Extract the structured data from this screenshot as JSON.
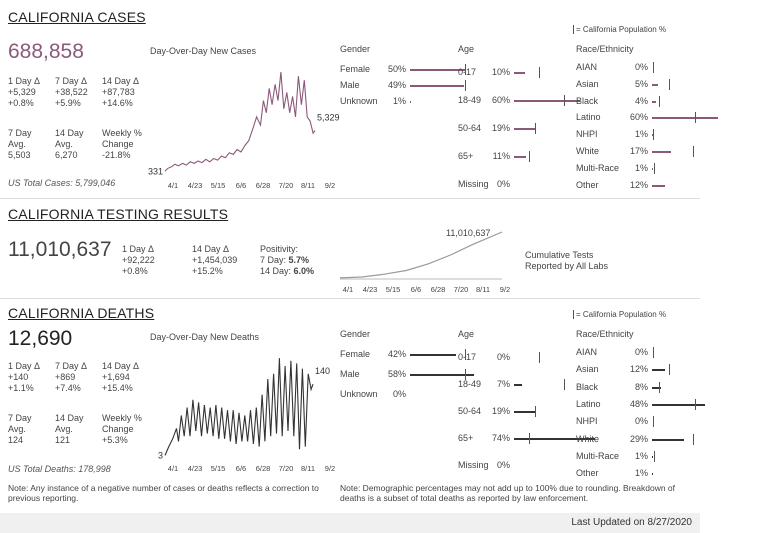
{
  "cases": {
    "title": "CALIFORNIA CASES",
    "total": "688,858",
    "chart_title": "Day-Over-Day New Cases",
    "pop_legend": "= California Population %",
    "stats": [
      {
        "label": "1 Day Δ",
        "v1": "+5,329",
        "v2": "+0.8%"
      },
      {
        "label": "7 Day Δ",
        "v1": "+38,522",
        "v2": "+5.9%"
      },
      {
        "label": "14 Day Δ",
        "v1": "+87,783",
        "v2": "+14.6%"
      }
    ],
    "avg": [
      {
        "label": "7 Day",
        "label2": "Avg.",
        "value": "5,503"
      },
      {
        "label": "14 Day",
        "label2": "Avg.",
        "value": "6,270"
      },
      {
        "label": "Weekly %",
        "label2": "Change",
        "value": "-21.8%"
      }
    ],
    "us_total": "US Total Cases: 5,799,046",
    "start_label": "331",
    "end_label": "5,329",
    "gender_title": "Gender",
    "age_title": "Age",
    "race_title": "Race/Ethnicity",
    "gender": [
      {
        "name": "Female",
        "pct": "50%",
        "value": 50,
        "pop": 50
      },
      {
        "name": "Male",
        "pct": "49%",
        "value": 49,
        "pop": 50
      },
      {
        "name": "Unknown",
        "pct": "1%",
        "value": 1,
        "pop": null
      }
    ],
    "age": [
      {
        "name": "0-17",
        "pct": "10%",
        "value": 10,
        "pop": 23
      },
      {
        "name": "18-49",
        "pct": "60%",
        "value": 60,
        "pop": 45
      },
      {
        "name": "50-64",
        "pct": "19%",
        "value": 19,
        "pop": 19
      },
      {
        "name": "65+",
        "pct": "11%",
        "value": 11,
        "pop": 14
      },
      {
        "name": "Missing",
        "pct": "0%",
        "value": 0,
        "pop": null
      }
    ],
    "race": [
      {
        "name": "AIAN",
        "pct": "0%",
        "value": 0,
        "pop": 1
      },
      {
        "name": "Asian",
        "pct": "5%",
        "value": 5,
        "pop": 15
      },
      {
        "name": "Black",
        "pct": "4%",
        "value": 4,
        "pop": 6
      },
      {
        "name": "Latino",
        "pct": "60%",
        "value": 60,
        "pop": 39
      },
      {
        "name": "NHPI",
        "pct": "1%",
        "value": 1,
        "pop": 1
      },
      {
        "name": "White",
        "pct": "17%",
        "value": 17,
        "pop": 37
      },
      {
        "name": "Multi-Race",
        "pct": "1%",
        "value": 1,
        "pop": 2
      },
      {
        "name": "Other",
        "pct": "12%",
        "value": 12,
        "pop": null
      }
    ]
  },
  "testing": {
    "title": "CALIFORNIA TESTING RESULTS",
    "total": "11,010,637",
    "stats": [
      {
        "label": "1 Day Δ",
        "v1": "+92,222",
        "v2": "+0.8%"
      },
      {
        "label": "14 Day Δ",
        "v1": "+1,454,039",
        "v2": "+15.2%"
      }
    ],
    "positivity_label": "Positivity:",
    "pos7_label": "7 Day:",
    "pos7": "5.7%",
    "pos14_label": "14 Day:",
    "pos14": "6.0%",
    "end_label": "11,010,637",
    "legend_line1": "Cumulative Tests",
    "legend_line2": "Reported by All Labs"
  },
  "deaths": {
    "title": "CALIFORNIA DEATHS",
    "total": "12,690",
    "chart_title": "Day-Over-Day New Deaths",
    "pop_legend": "= California Population %",
    "stats": [
      {
        "label": "1 Day Δ",
        "v1": "+140",
        "v2": "+1.1%"
      },
      {
        "label": "7 Day Δ",
        "v1": "+869",
        "v2": "+7.4%"
      },
      {
        "label": "14 Day Δ",
        "v1": "+1,694",
        "v2": "+15.4%"
      }
    ],
    "avg": [
      {
        "label": "7 Day",
        "label2": "Avg.",
        "value": "124"
      },
      {
        "label": "14 Day",
        "label2": "Avg.",
        "value": "121"
      },
      {
        "label": "Weekly %",
        "label2": "Change",
        "value": "+5.3%"
      }
    ],
    "us_total": "US Total Deaths: 178,998",
    "start_label": "3",
    "end_label": "140",
    "gender_title": "Gender",
    "age_title": "Age",
    "race_title": "Race/Ethnicity",
    "gender": [
      {
        "name": "Female",
        "pct": "42%",
        "value": 42,
        "pop": 50
      },
      {
        "name": "Male",
        "pct": "58%",
        "value": 58,
        "pop": 50
      },
      {
        "name": "Unknown",
        "pct": "0%",
        "value": 0,
        "pop": null
      }
    ],
    "age": [
      {
        "name": "0-17",
        "pct": "0%",
        "value": 0,
        "pop": 23
      },
      {
        "name": "18-49",
        "pct": "7%",
        "value": 7,
        "pop": 45
      },
      {
        "name": "50-64",
        "pct": "19%",
        "value": 19,
        "pop": 19
      },
      {
        "name": "65+",
        "pct": "74%",
        "value": 74,
        "pop": 14
      },
      {
        "name": "Missing",
        "pct": "0%",
        "value": 0,
        "pop": null
      }
    ],
    "race": [
      {
        "name": "AIAN",
        "pct": "0%",
        "value": 0,
        "pop": 1
      },
      {
        "name": "Asian",
        "pct": "12%",
        "value": 12,
        "pop": 15
      },
      {
        "name": "Black",
        "pct": "8%",
        "value": 8,
        "pop": 6
      },
      {
        "name": "Latino",
        "pct": "48%",
        "value": 48,
        "pop": 39
      },
      {
        "name": "NHPI",
        "pct": "0%",
        "value": 0,
        "pop": 1
      },
      {
        "name": "White",
        "pct": "29%",
        "value": 29,
        "pop": 37
      },
      {
        "name": "Multi-Race",
        "pct": "1%",
        "value": 1,
        "pop": 2
      },
      {
        "name": "Other",
        "pct": "1%",
        "value": 1,
        "pop": null
      }
    ]
  },
  "x_ticks": [
    "4/1",
    "4/23",
    "5/15",
    "6/6",
    "6/28",
    "7/20",
    "8/11",
    "9/2"
  ],
  "note_left": "Note: Any instance of a negative number of cases or deaths reflects a correction to previous reporting.",
  "note_right": "Note: Demographic percentages may not add up to 100% due to rounding. Breakdown of deaths is a subset of total deaths as reported by law enforcement.",
  "last_updated": "Last Updated on 8/27/2020",
  "colors": {
    "cases": "#8b5a7a",
    "deaths": "#333333",
    "testing": "#9a9a9a",
    "pop_tick": "#555555"
  },
  "chart_data": [
    {
      "type": "line",
      "title": "Day-Over-Day New Cases",
      "x_range": [
        "3/25",
        "8/26"
      ],
      "points": [
        {
          "x": "3/25",
          "y": 331
        },
        {
          "x": "3/28",
          "y": 700
        },
        {
          "x": "4/1",
          "y": 900
        },
        {
          "x": "4/4",
          "y": 1200
        },
        {
          "x": "4/8",
          "y": 1000
        },
        {
          "x": "4/12",
          "y": 1300
        },
        {
          "x": "4/16",
          "y": 1100
        },
        {
          "x": "4/20",
          "y": 1500
        },
        {
          "x": "4/24",
          "y": 1300
        },
        {
          "x": "4/28",
          "y": 1600
        },
        {
          "x": "5/2",
          "y": 1400
        },
        {
          "x": "5/6",
          "y": 1800
        },
        {
          "x": "5/10",
          "y": 1500
        },
        {
          "x": "5/14",
          "y": 1900
        },
        {
          "x": "5/18",
          "y": 1700
        },
        {
          "x": "5/22",
          "y": 2200
        },
        {
          "x": "5/26",
          "y": 2000
        },
        {
          "x": "5/30",
          "y": 2600
        },
        {
          "x": "6/3",
          "y": 2400
        },
        {
          "x": "6/7",
          "y": 3000
        },
        {
          "x": "6/11",
          "y": 2700
        },
        {
          "x": "6/15",
          "y": 3500
        },
        {
          "x": "6/19",
          "y": 4100
        },
        {
          "x": "6/23",
          "y": 5500
        },
        {
          "x": "6/27",
          "y": 7000
        },
        {
          "x": "7/1",
          "y": 6000
        },
        {
          "x": "7/4",
          "y": 9000
        },
        {
          "x": "7/7",
          "y": 7500
        },
        {
          "x": "7/10",
          "y": 10500
        },
        {
          "x": "7/13",
          "y": 8500
        },
        {
          "x": "7/16",
          "y": 11000
        },
        {
          "x": "7/19",
          "y": 9000
        },
        {
          "x": "7/22",
          "y": 12500
        },
        {
          "x": "7/25",
          "y": 8000
        },
        {
          "x": "7/28",
          "y": 10000
        },
        {
          "x": "7/31",
          "y": 7500
        },
        {
          "x": "8/3",
          "y": 9500
        },
        {
          "x": "8/6",
          "y": 7000
        },
        {
          "x": "8/9",
          "y": 12000
        },
        {
          "x": "8/12",
          "y": 8500
        },
        {
          "x": "8/15",
          "y": 11500
        },
        {
          "x": "8/18",
          "y": 7000
        },
        {
          "x": "8/21",
          "y": 6500
        },
        {
          "x": "8/24",
          "y": 5000
        },
        {
          "x": "8/26",
          "y": 5329
        }
      ],
      "ylim": [
        0,
        13000
      ]
    },
    {
      "type": "line",
      "title": "Cumulative Tests Reported by All Labs",
      "x_range": [
        "3/25",
        "8/26"
      ],
      "points": [
        {
          "x": "3/25",
          "y": 20000
        },
        {
          "x": "4/15",
          "y": 250000
        },
        {
          "x": "5/6",
          "y": 900000
        },
        {
          "x": "5/27",
          "y": 1800000
        },
        {
          "x": "6/17",
          "y": 3400000
        },
        {
          "x": "7/8",
          "y": 5500000
        },
        {
          "x": "7/29",
          "y": 8000000
        },
        {
          "x": "8/26",
          "y": 11010637
        }
      ],
      "ylim": [
        0,
        11500000
      ]
    },
    {
      "type": "line",
      "title": "Day-Over-Day New Deaths",
      "x_range": [
        "3/25",
        "8/26"
      ],
      "points": [
        {
          "x": "3/25",
          "y": 3
        },
        {
          "x": "3/29",
          "y": 20
        },
        {
          "x": "4/2",
          "y": 35
        },
        {
          "x": "4/6",
          "y": 55
        },
        {
          "x": "4/8",
          "y": 30
        },
        {
          "x": "4/11",
          "y": 80
        },
        {
          "x": "4/14",
          "y": 40
        },
        {
          "x": "4/17",
          "y": 95
        },
        {
          "x": "4/20",
          "y": 40
        },
        {
          "x": "4/23",
          "y": 110
        },
        {
          "x": "4/26",
          "y": 50
        },
        {
          "x": "4/29",
          "y": 105
        },
        {
          "x": "5/2",
          "y": 40
        },
        {
          "x": "5/5",
          "y": 100
        },
        {
          "x": "5/8",
          "y": 45
        },
        {
          "x": "5/11",
          "y": 95
        },
        {
          "x": "5/14",
          "y": 40
        },
        {
          "x": "5/17",
          "y": 100
        },
        {
          "x": "5/20",
          "y": 35
        },
        {
          "x": "5/23",
          "y": 95
        },
        {
          "x": "5/26",
          "y": 35
        },
        {
          "x": "5/29",
          "y": 90
        },
        {
          "x": "6/1",
          "y": 30
        },
        {
          "x": "6/4",
          "y": 90
        },
        {
          "x": "6/7",
          "y": 25
        },
        {
          "x": "6/10",
          "y": 85
        },
        {
          "x": "6/13",
          "y": 30
        },
        {
          "x": "6/16",
          "y": 80
        },
        {
          "x": "6/19",
          "y": 30
        },
        {
          "x": "6/22",
          "y": 90
        },
        {
          "x": "6/25",
          "y": 25
        },
        {
          "x": "6/28",
          "y": 95
        },
        {
          "x": "7/1",
          "y": 20
        },
        {
          "x": "7/4",
          "y": 120
        },
        {
          "x": "7/7",
          "y": 30
        },
        {
          "x": "7/10",
          "y": 150
        },
        {
          "x": "7/13",
          "y": 40
        },
        {
          "x": "7/16",
          "y": 160
        },
        {
          "x": "7/19",
          "y": 45
        },
        {
          "x": "7/22",
          "y": 190
        },
        {
          "x": "7/25",
          "y": 40
        },
        {
          "x": "7/28",
          "y": 175
        },
        {
          "x": "7/31",
          "y": 50
        },
        {
          "x": "8/3",
          "y": 185
        },
        {
          "x": "8/6",
          "y": 40
        },
        {
          "x": "8/9",
          "y": 180
        },
        {
          "x": "8/12",
          "y": 15
        },
        {
          "x": "8/15",
          "y": 170
        },
        {
          "x": "8/18",
          "y": 20
        },
        {
          "x": "8/21",
          "y": 160
        },
        {
          "x": "8/24",
          "y": 130
        },
        {
          "x": "8/26",
          "y": 140
        }
      ],
      "ylim": [
        0,
        200
      ]
    }
  ]
}
